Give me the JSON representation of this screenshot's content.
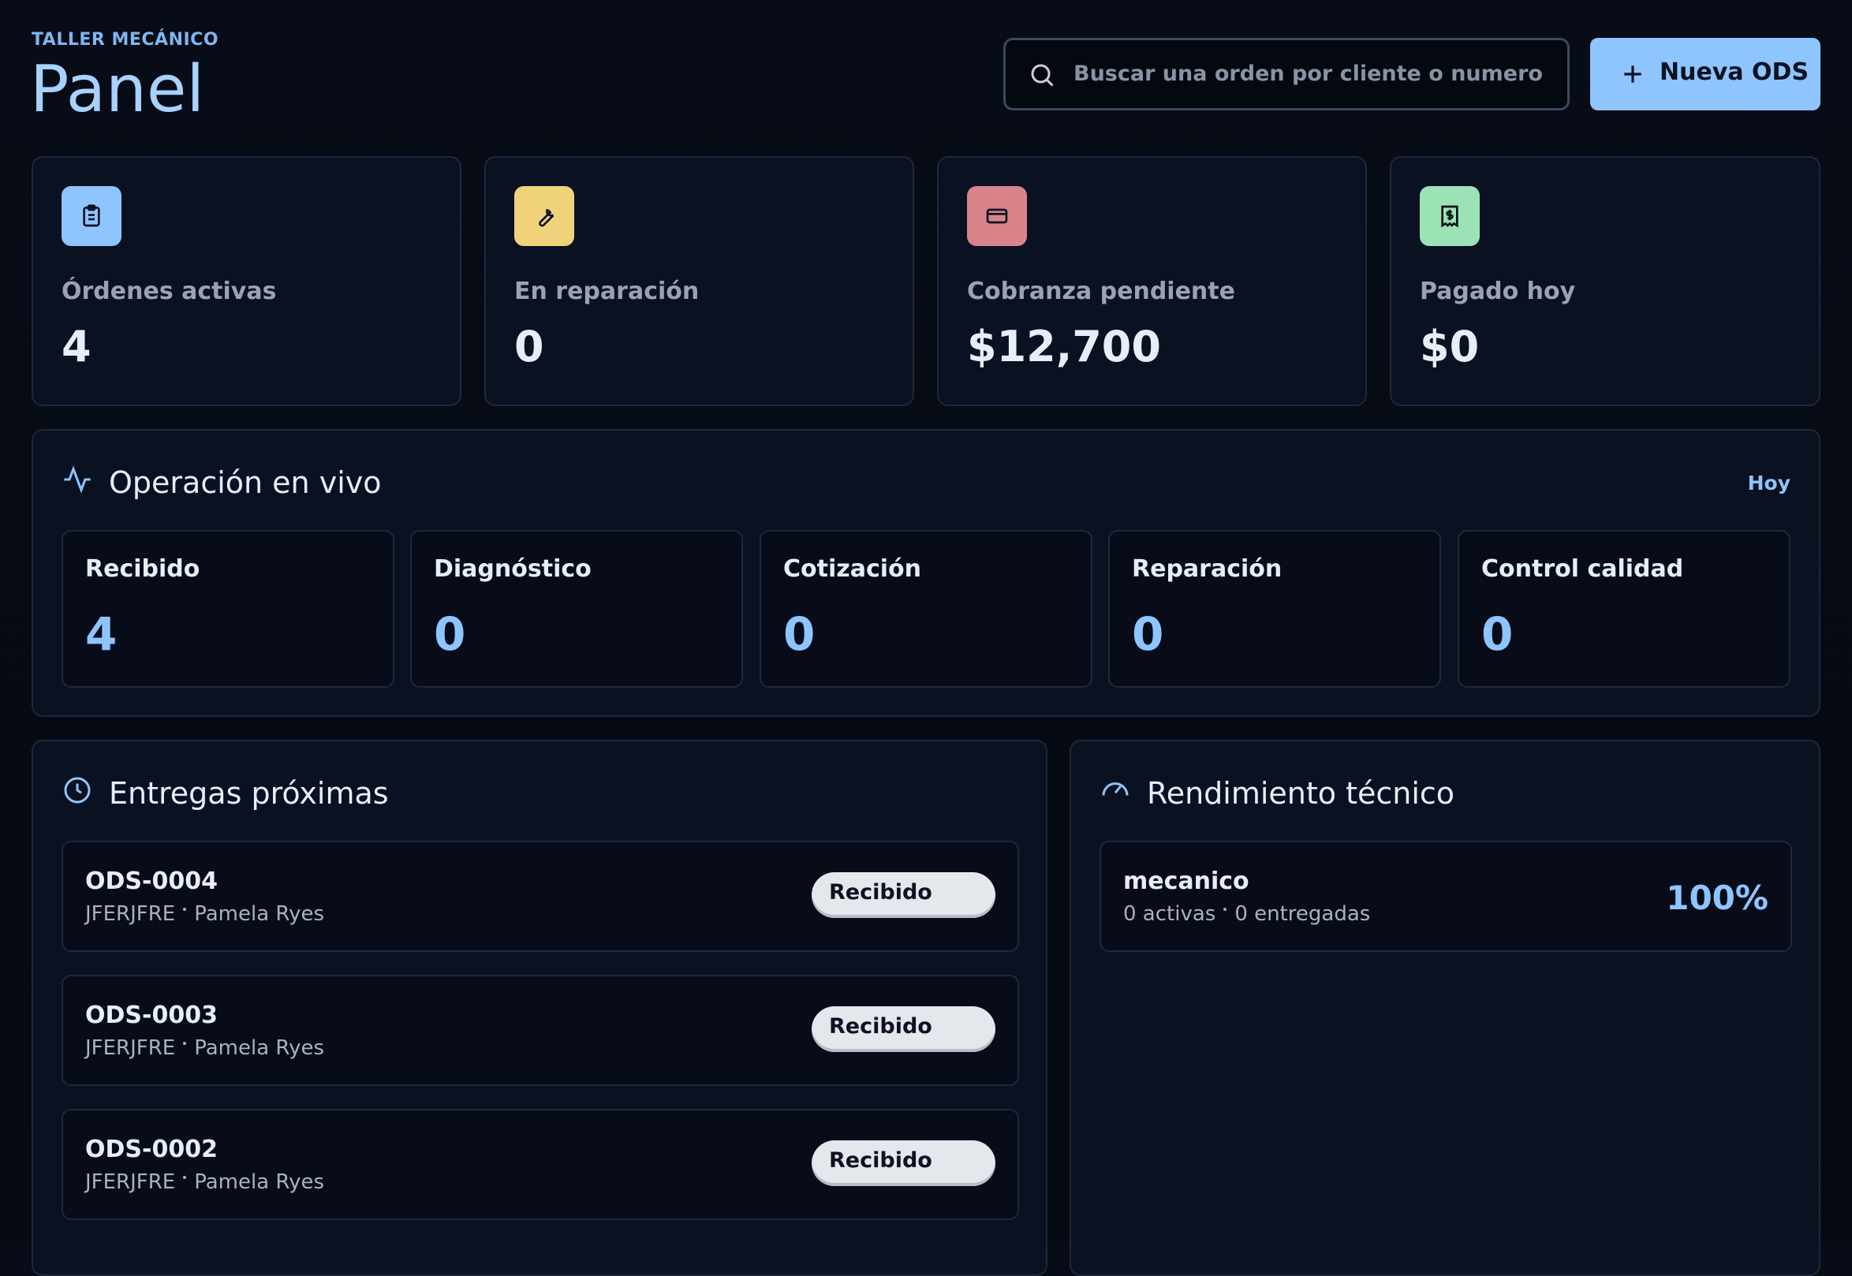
{
  "header": {
    "eyebrow": "TALLER MECÁNICO",
    "title": "Panel",
    "search_placeholder": "Buscar una orden por cliente o numero",
    "new_button": "Nueva ODS"
  },
  "stats": [
    {
      "label": "Órdenes activas",
      "value": 4
    },
    {
      "label": "En reparación",
      "value": 0
    },
    {
      "label": "Cobranza pendiente",
      "value": "$12,700"
    },
    {
      "label": "Pagado hoy",
      "value": "$0"
    }
  ],
  "live": {
    "title": "Operación en vivo",
    "badge": "Hoy",
    "stages": [
      {
        "label": "Recibido",
        "count": 4
      },
      {
        "label": "Diagnóstico",
        "count": 0
      },
      {
        "label": "Cotización",
        "count": 0
      },
      {
        "label": "Reparación",
        "count": 0
      },
      {
        "label": "Control calidad",
        "count": 0
      }
    ]
  },
  "deliveries": {
    "title": "Entregas próximas",
    "items": [
      {
        "id": "ODS-0004",
        "client": "JFERJFRE",
        "name": "Pamela Ryes",
        "status": "Recibido"
      },
      {
        "id": "ODS-0003",
        "client": "JFERJFRE",
        "name": "Pamela Ryes",
        "status": "Recibido"
      },
      {
        "id": "ODS-0002",
        "client": "JFERJFRE",
        "name": "Pamela Ryes",
        "status": "Recibido"
      }
    ]
  },
  "technicians": {
    "title": "Rendimiento técnico",
    "items": [
      {
        "name": "mecanico",
        "active": "0 activas",
        "delivered": "0 entregadas",
        "score": "100%"
      }
    ]
  }
}
